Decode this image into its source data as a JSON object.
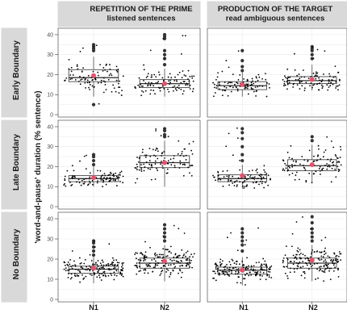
{
  "chart_data": {
    "type": "boxplot",
    "facet_columns": [
      {
        "title_line1": "REPETITION OF THE PRIME",
        "title_line2": "listened sentences"
      },
      {
        "title_line1": "PRODUCTION OF THE TARGET",
        "title_line2": "read ambiguous sentences"
      }
    ],
    "facet_rows": [
      "Early Boundary",
      "Late Boundary",
      "No Boundary"
    ],
    "categories": [
      "N1",
      "N2"
    ],
    "ylabel": "'word-and-pause' duration (% sentence)",
    "xlabel": "",
    "ylim": [
      0,
      42
    ],
    "yticks": [
      0,
      10,
      20,
      30,
      40
    ],
    "grid": true,
    "colors": {
      "box": "#333333",
      "point": "#000000",
      "mean": "#e8506e",
      "strip": "#d9d9d9"
    },
    "panels": [
      {
        "row": "Early Boundary",
        "column": "REPETITION OF THE PRIME",
        "boxes": [
          {
            "category": "N1",
            "q1": 16.5,
            "median": 18.5,
            "q3": 22.5,
            "whisker_low": 9,
            "whisker_high": 29,
            "mean": 19.5,
            "outliers": [
              5,
              32,
              33,
              34,
              35
            ],
            "n": 90
          },
          {
            "category": "N2",
            "q1": 13.5,
            "median": 15.5,
            "q3": 17.5,
            "whisker_low": 9,
            "whisker_high": 23,
            "mean": 15.5,
            "outliers": [
              25,
              28,
              30,
              32,
              38,
              39,
              40
            ],
            "n": 100
          }
        ]
      },
      {
        "row": "Early Boundary",
        "column": "PRODUCTION OF THE TARGET",
        "boxes": [
          {
            "category": "N1",
            "q1": 12.5,
            "median": 14.5,
            "q3": 16.5,
            "whisker_low": 9,
            "whisker_high": 21,
            "mean": 15,
            "outliers": [
              22,
              24,
              27,
              32
            ],
            "n": 90
          },
          {
            "category": "N2",
            "q1": 15.5,
            "median": 17,
            "q3": 19,
            "whisker_low": 12,
            "whisker_high": 25,
            "mean": 17.5,
            "outliers": [
              28,
              30,
              32,
              33,
              34
            ],
            "n": 100
          }
        ]
      },
      {
        "row": "Late Boundary",
        "column": "REPETITION OF THE PRIME",
        "boxes": [
          {
            "category": "N1",
            "q1": 12.5,
            "median": 14,
            "q3": 15.5,
            "whisker_low": 10,
            "whisker_high": 20,
            "mean": 14.5,
            "outliers": [
              21,
              23,
              25,
              26
            ],
            "n": 90
          },
          {
            "category": "N2",
            "q1": 19.5,
            "median": 22,
            "q3": 25.5,
            "whisker_low": 10,
            "whisker_high": 33,
            "mean": 22,
            "outliers": [
              35,
              36,
              38,
              39
            ],
            "n": 100
          }
        ]
      },
      {
        "row": "Late Boundary",
        "column": "PRODUCTION OF THE TARGET",
        "boxes": [
          {
            "category": "N1",
            "q1": 12.5,
            "median": 14,
            "q3": 16,
            "whisker_low": 9,
            "whisker_high": 21,
            "mean": 15.5,
            "outliers": [
              23,
              26,
              30,
              34,
              37,
              39
            ],
            "n": 90
          },
          {
            "category": "N2",
            "q1": 18,
            "median": 20.5,
            "q3": 23.5,
            "whisker_low": 12,
            "whisker_high": 31,
            "mean": 21,
            "outliers": [
              33,
              35
            ],
            "n": 100
          }
        ]
      },
      {
        "row": "No Boundary",
        "column": "REPETITION OF THE PRIME",
        "boxes": [
          {
            "category": "N1",
            "q1": 13,
            "median": 15,
            "q3": 16.5,
            "whisker_low": 8,
            "whisker_high": 21,
            "mean": 15.5,
            "outliers": [
              22,
              24,
              26,
              28,
              29
            ],
            "n": 160
          },
          {
            "category": "N2",
            "q1": 15.5,
            "median": 18,
            "q3": 20.5,
            "whisker_low": 9,
            "whisker_high": 27,
            "mean": 19,
            "outliers": [
              29,
              31,
              33,
              35,
              37
            ],
            "n": 160
          }
        ]
      },
      {
        "row": "No Boundary",
        "column": "PRODUCTION OF THE TARGET",
        "boxes": [
          {
            "category": "N1",
            "q1": 12.5,
            "median": 14.5,
            "q3": 16,
            "whisker_low": 7,
            "whisker_high": 21,
            "mean": 14.5,
            "outliers": [
              24,
              27,
              29,
              31,
              33,
              35
            ],
            "n": 160
          },
          {
            "category": "N2",
            "q1": 15.5,
            "median": 18,
            "q3": 20.5,
            "whisker_low": 9,
            "whisker_high": 27,
            "mean": 19.5,
            "outliers": [
              29,
              31,
              33,
              35,
              38,
              41
            ],
            "n": 160
          }
        ]
      }
    ]
  }
}
